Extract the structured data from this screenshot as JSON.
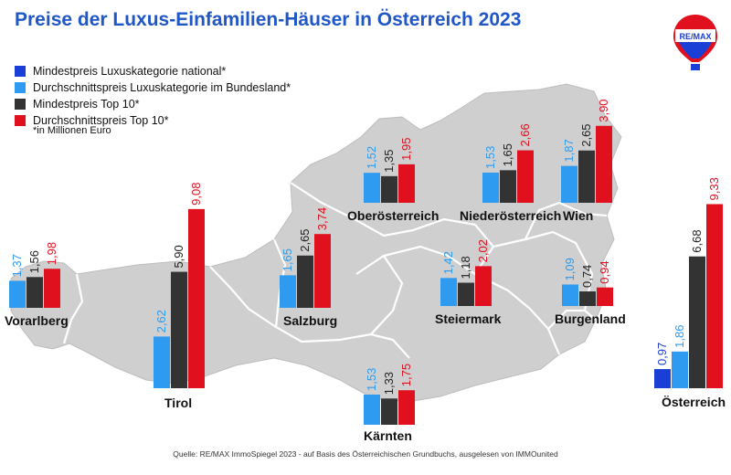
{
  "title": "Preise der Luxus-Einfamilien-Häuser in Österreich 2023",
  "logo": {
    "text": "RE/MAX",
    "icon": "hot-air-balloon-icon"
  },
  "legend": [
    {
      "label": "Mindestpreis Luxuskategorie national*",
      "color": "#1a3fd6"
    },
    {
      "label": "Durchschnittspreis Luxuskategorie im Bundesland*",
      "color": "#2e9bf0"
    },
    {
      "label": "Mindestpreis Top 10*",
      "color": "#333333"
    },
    {
      "label": "Durchschnittspreis Top 10*",
      "color": "#e0101e"
    }
  ],
  "unit_note": "*in Millionen Euro",
  "source": "Quelle: RE/MAX ImmoSpiegel 2023 - auf Basis des Österreichischen Grundbuchs, ausgelesen von IMMOunited",
  "colors": {
    "national": "#1a3fd6",
    "bundesland": "#2e9bf0",
    "top10min": "#333333",
    "top10avg": "#e0101e",
    "map": "#cfcfcf",
    "mapBorder": "#ffffff"
  },
  "chart_data": {
    "type": "bar",
    "title": "Preise der Luxus-Einfamilien-Häuser in Österreich 2023",
    "unit": "in Millionen Euro",
    "series_names": [
      "Mindestpreis Luxuskategorie national*",
      "Durchschnittspreis Luxuskategorie im Bundesland*",
      "Mindestpreis Top 10*",
      "Durchschnittspreis Top 10*"
    ],
    "groups": [
      {
        "name": "Vorarlberg",
        "values": [
          1.37,
          1.56,
          1.98
        ],
        "labels": [
          "1,37",
          "1,56",
          "1,98"
        ]
      },
      {
        "name": "Tirol",
        "values": [
          2.62,
          5.9,
          9.08
        ],
        "labels": [
          "2,62",
          "5,90",
          "9,08"
        ]
      },
      {
        "name": "Salzburg",
        "values": [
          1.65,
          2.65,
          3.74
        ],
        "labels": [
          "1,65",
          "2,65",
          "3,74"
        ]
      },
      {
        "name": "Oberösterreich",
        "values": [
          1.52,
          1.35,
          1.95
        ],
        "labels": [
          "1,52",
          "1,35",
          "1,95"
        ]
      },
      {
        "name": "Niederösterreich",
        "values": [
          1.53,
          1.65,
          2.66
        ],
        "labels": [
          "1,53",
          "1,65",
          "2,66"
        ]
      },
      {
        "name": "Wien",
        "values": [
          1.87,
          2.65,
          3.9
        ],
        "labels": [
          "1,87",
          "2,65",
          "3,90"
        ]
      },
      {
        "name": "Steiermark",
        "values": [
          1.42,
          1.18,
          2.02
        ],
        "labels": [
          "1,42",
          "1,18",
          "2,02"
        ]
      },
      {
        "name": "Burgenland",
        "values": [
          1.09,
          0.74,
          0.94
        ],
        "labels": [
          "1,09",
          "0,74",
          "0,94"
        ]
      },
      {
        "name": "Kärnten",
        "values": [
          1.53,
          1.33,
          1.75
        ],
        "labels": [
          "1,53",
          "1,33",
          "1,75"
        ]
      },
      {
        "name": "Österreich",
        "values": [
          0.97,
          1.86,
          6.68,
          9.33
        ],
        "labels": [
          "0,97",
          "1,86",
          "6,68",
          "9,33"
        ]
      }
    ]
  }
}
